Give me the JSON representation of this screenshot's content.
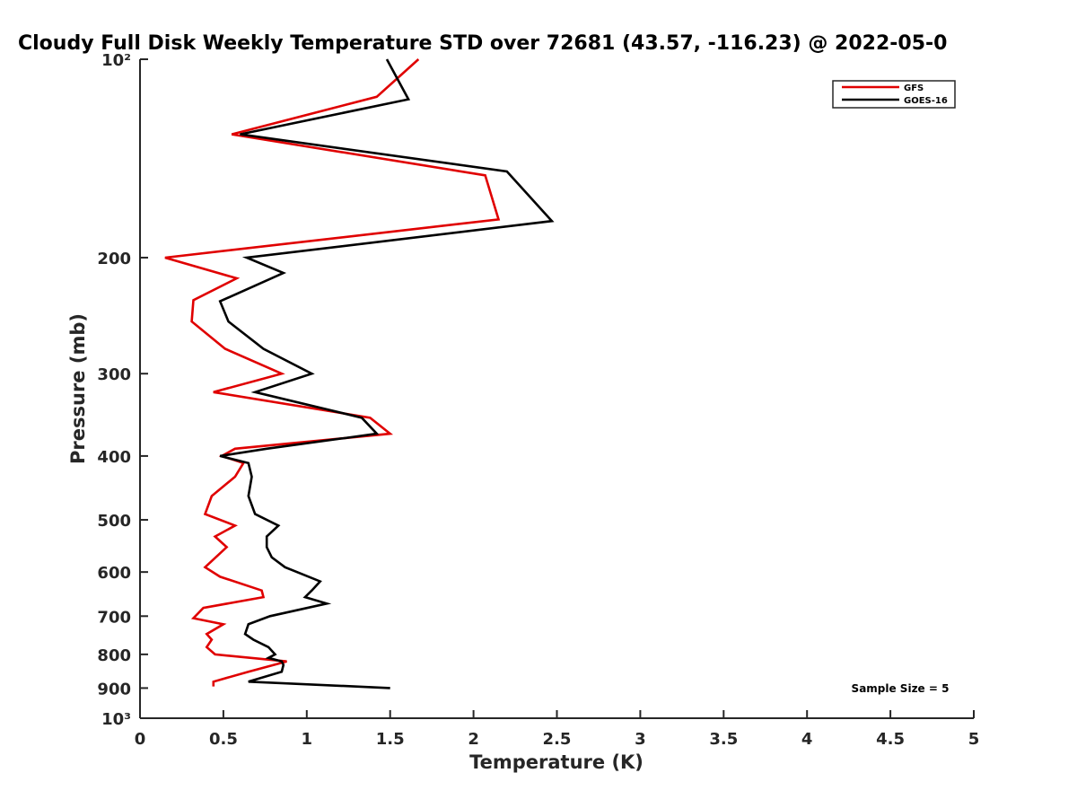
{
  "chart_data": {
    "type": "line",
    "title": "Cloudy Full Disk Weekly Temperature STD over 72681 (43.57, -116.23) @ 2022-05-0",
    "xlabel": "Temperature (K)",
    "ylabel": "Pressure (mb)",
    "xlim": [
      0,
      5
    ],
    "ylim": [
      100,
      1000
    ],
    "y_scale": "log",
    "y_reversed": true,
    "grid": false,
    "legend_placement": "top-right",
    "x_ticks": [
      0,
      0.5,
      1,
      1.5,
      2,
      2.5,
      3,
      3.5,
      4,
      4.5,
      5
    ],
    "x_tick_labels": [
      "0",
      "0.5",
      "1",
      "1.5",
      "2",
      "2.5",
      "3",
      "3.5",
      "4",
      "4.5",
      "5"
    ],
    "y_ticks": [
      100,
      200,
      300,
      400,
      500,
      600,
      700,
      800,
      900,
      1000
    ],
    "y_tick_labels": [
      "10²",
      "200",
      "300",
      "400",
      "500",
      "600",
      "700",
      "800",
      "900",
      "10³"
    ],
    "annotation": "Sample Size = 5",
    "series": [
      {
        "name": "GFS",
        "color": "#e00000",
        "points": [
          [
            1.67,
            100
          ],
          [
            1.42,
            114
          ],
          [
            0.55,
            130
          ],
          [
            2.07,
            150
          ],
          [
            2.15,
            175
          ],
          [
            0.15,
            200
          ],
          [
            0.58,
            215
          ],
          [
            0.32,
            232
          ],
          [
            0.31,
            250
          ],
          [
            0.51,
            275
          ],
          [
            0.85,
            300
          ],
          [
            0.44,
            320
          ],
          [
            1.38,
            350
          ],
          [
            1.5,
            370
          ],
          [
            0.57,
            390
          ],
          [
            0.49,
            400
          ],
          [
            0.62,
            410
          ],
          [
            0.57,
            430
          ],
          [
            0.43,
            460
          ],
          [
            0.39,
            490
          ],
          [
            0.57,
            510
          ],
          [
            0.45,
            530
          ],
          [
            0.52,
            550
          ],
          [
            0.39,
            590
          ],
          [
            0.48,
            610
          ],
          [
            0.73,
            640
          ],
          [
            0.74,
            655
          ],
          [
            0.38,
            680
          ],
          [
            0.32,
            705
          ],
          [
            0.5,
            720
          ],
          [
            0.4,
            745
          ],
          [
            0.43,
            760
          ],
          [
            0.4,
            780
          ],
          [
            0.45,
            800
          ],
          [
            0.88,
            820
          ],
          [
            0.65,
            850
          ],
          [
            0.44,
            880
          ],
          [
            0.44,
            895
          ]
        ]
      },
      {
        "name": "GOES-16",
        "color": "#000000",
        "points": [
          [
            1.48,
            100
          ],
          [
            1.61,
            115
          ],
          [
            0.6,
            130
          ],
          [
            2.2,
            148
          ],
          [
            2.47,
            176
          ],
          [
            0.64,
            200
          ],
          [
            0.86,
            211
          ],
          [
            0.48,
            233
          ],
          [
            0.53,
            250
          ],
          [
            0.74,
            275
          ],
          [
            1.03,
            300
          ],
          [
            0.69,
            320
          ],
          [
            1.33,
            350
          ],
          [
            1.42,
            370
          ],
          [
            0.76,
            390
          ],
          [
            0.48,
            400
          ],
          [
            0.65,
            410
          ],
          [
            0.67,
            430
          ],
          [
            0.65,
            460
          ],
          [
            0.69,
            490
          ],
          [
            0.83,
            510
          ],
          [
            0.76,
            530
          ],
          [
            0.76,
            550
          ],
          [
            0.79,
            570
          ],
          [
            0.87,
            590
          ],
          [
            1.08,
            620
          ],
          [
            1.03,
            640
          ],
          [
            0.99,
            655
          ],
          [
            1.12,
            670
          ],
          [
            0.78,
            700
          ],
          [
            0.65,
            720
          ],
          [
            0.63,
            745
          ],
          [
            0.68,
            760
          ],
          [
            0.77,
            780
          ],
          [
            0.81,
            800
          ],
          [
            0.77,
            810
          ],
          [
            0.85,
            820
          ],
          [
            0.86,
            830
          ],
          [
            0.85,
            850
          ],
          [
            0.65,
            880
          ],
          [
            1.5,
            900
          ]
        ]
      }
    ]
  }
}
